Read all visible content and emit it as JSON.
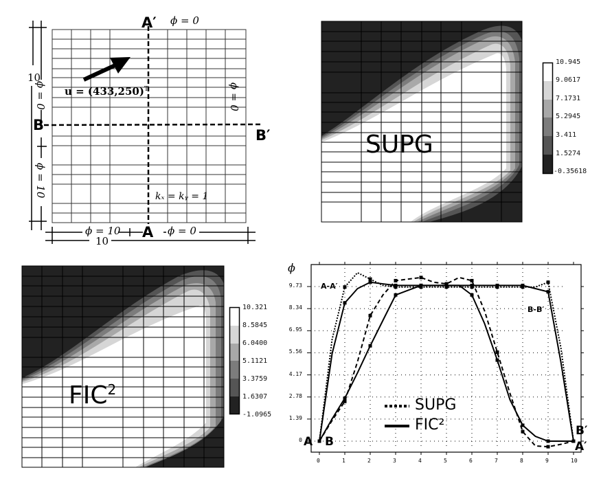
{
  "colors": {
    "dark": "#222222",
    "level1": "#555555",
    "level2": "#7c7c7c",
    "level3": "#a8a8a8",
    "level4": "#d6d6d6",
    "white": "#ffffff",
    "grid_line": "#000000",
    "diagram_line": "#333333"
  },
  "diagram": {
    "label_A": "A",
    "label_A_prime": "A′",
    "label_B": "B",
    "label_B_prime": "B′",
    "top_bc": "ϕ = 0",
    "right_bc": "ϕ = 0",
    "left_upper_bc": "ϕ = 0",
    "left_lower_bc": "ϕ = 10",
    "bottom_left_bc": "ϕ = 10",
    "bottom_right_bc": "ϕ = 0",
    "velocity_label": "u = (433,250)",
    "velocity_superscript": "T",
    "conductivity_label": "kₓ = kᵧ = 1",
    "width_dim": "10",
    "height_dim": "10",
    "arrow_icon": "velocity-arrow-icon"
  },
  "supg_panel": {
    "title": "SUPG",
    "legend_values": [
      "10.945",
      "9.0617",
      "7.1731",
      "5.2945",
      "3.411",
      "1.5274",
      "-0.35618"
    ]
  },
  "fic_panel": {
    "title": "FIC",
    "title_sup": "2",
    "legend_values": [
      "10.321",
      "8.5845",
      "6.0400",
      "5.1121",
      "3.3759",
      "1.6307",
      "-1.0965"
    ]
  },
  "chart_data": {
    "type": "line",
    "title": "",
    "xlabel": "",
    "ylabel": "ϕ",
    "x": [
      0,
      0.5,
      1,
      1.5,
      2,
      2.5,
      3,
      3.5,
      4,
      4.5,
      5,
      5.5,
      6,
      6.5,
      7,
      7.5,
      8,
      8.5,
      9,
      9.5,
      10
    ],
    "xticks": [
      "0",
      "1",
      "2",
      "3",
      "4",
      "5",
      "6",
      "7",
      "8",
      "9",
      "10"
    ],
    "yticks": [
      "0",
      "1.39",
      "2.78",
      "4.17",
      "5.56",
      "6.95",
      "8.34",
      "9.73"
    ],
    "xlim": [
      0,
      10
    ],
    "ylim": [
      -0.6,
      11.0
    ],
    "grid": true,
    "legend_position": "lower-center",
    "legend": [
      "SUPG",
      "FIC²"
    ],
    "annotations": [
      "A-A′",
      "B-B′",
      "A",
      "B",
      "A′",
      "B′"
    ],
    "series": [
      {
        "name": "SUPG A-A′",
        "style": "dotted",
        "values": [
          0,
          6.4,
          9.7,
          10.6,
          10.2,
          9.8,
          9.7,
          9.7,
          9.7,
          9.7,
          9.7,
          9.7,
          9.7,
          9.7,
          9.7,
          9.7,
          9.7,
          9.7,
          10.0,
          5.9,
          0
        ]
      },
      {
        "name": "FIC² A-A′",
        "style": "solid",
        "values": [
          0,
          5.5,
          8.7,
          9.6,
          10.0,
          9.9,
          9.8,
          9.8,
          9.8,
          9.8,
          9.8,
          9.8,
          9.8,
          9.8,
          9.8,
          9.8,
          9.8,
          9.6,
          9.4,
          5.0,
          0
        ]
      },
      {
        "name": "SUPG B-B′",
        "style": "dashed",
        "values": [
          0,
          1.3,
          2.5,
          5.0,
          7.9,
          9.2,
          10.1,
          10.2,
          10.3,
          10.0,
          9.9,
          10.3,
          10.1,
          8.2,
          5.6,
          3.0,
          0.6,
          -0.3,
          -0.35,
          -0.2,
          0
        ]
      },
      {
        "name": "FIC² B-B′",
        "style": "solid",
        "values": [
          0,
          1.4,
          2.7,
          4.3,
          6.0,
          7.6,
          9.2,
          9.5,
          9.8,
          9.8,
          9.8,
          9.8,
          9.2,
          7.4,
          5.1,
          2.6,
          1.0,
          0.3,
          0.0,
          0.0,
          0
        ]
      }
    ]
  }
}
